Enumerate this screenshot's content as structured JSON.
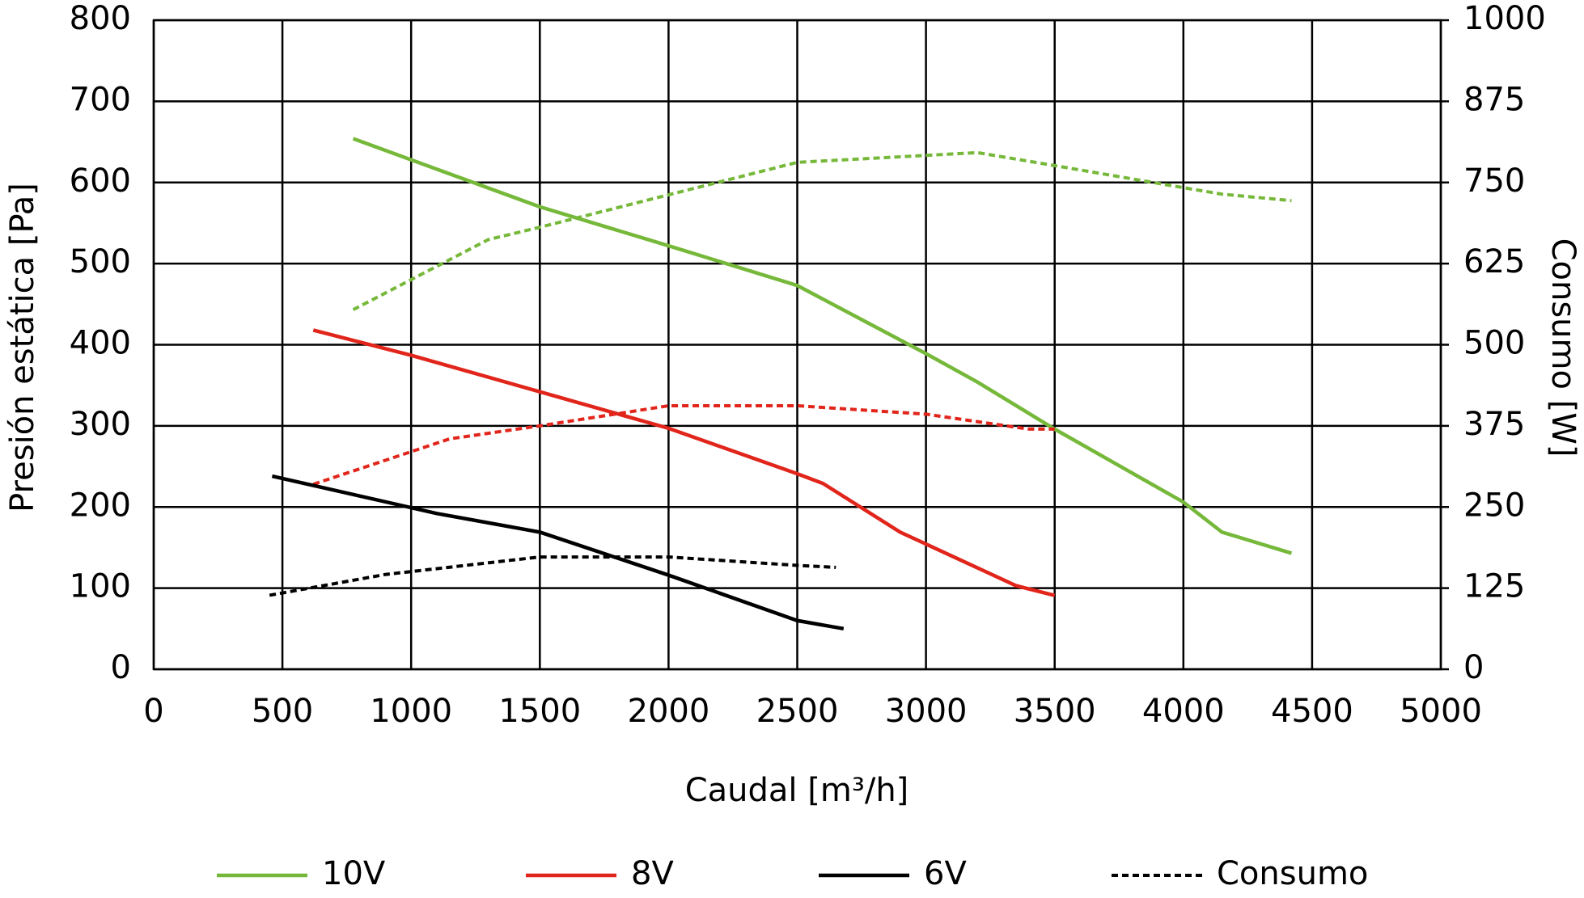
{
  "chart_data": {
    "type": "line",
    "x_label": "Caudal [m³/h]",
    "y_label": "Presión estática [Pa]",
    "y2_label": "Consumo [W]",
    "xlim": [
      0,
      5000
    ],
    "xticks": [
      0,
      500,
      1000,
      1500,
      2000,
      2500,
      3000,
      3500,
      4000,
      4500,
      5000
    ],
    "ylim": [
      0,
      800
    ],
    "yticks": [
      0,
      100,
      200,
      300,
      400,
      500,
      600,
      700,
      800
    ],
    "y2lim": [
      0,
      1000
    ],
    "y2ticks": [
      0,
      125,
      250,
      375,
      500,
      625,
      750,
      875,
      1000
    ],
    "grid": true,
    "series": [
      {
        "color": "#76b83a",
        "dashed": false,
        "x": [
          775,
          1500,
          2000,
          2500,
          3000,
          3200,
          3500,
          4000,
          4150,
          4420
        ],
        "values": [
          654,
          570,
          522,
          473,
          389,
          354,
          296,
          206,
          169,
          143
        ]
      },
      {
        "color": "#76b83a",
        "dashed": true,
        "axis": "y2",
        "x": [
          775,
          1300,
          1500,
          2000,
          2500,
          3200,
          3500,
          4000,
          4150,
          4420
        ],
        "values": [
          554,
          662,
          681,
          731,
          781,
          796,
          776,
          742,
          732,
          722
        ]
      },
      {
        "color": "#e1251b",
        "dashed": false,
        "x": [
          620,
          1000,
          1500,
          2000,
          2500,
          2600,
          2900,
          3350,
          3500
        ],
        "values": [
          418,
          387,
          342,
          297,
          241,
          229,
          169,
          103,
          91
        ]
      },
      {
        "color": "#e1251b",
        "dashed": true,
        "axis": "y2",
        "x": [
          620,
          1150,
          1500,
          2000,
          2500,
          3000,
          3400,
          3500
        ],
        "values": [
          285,
          355,
          375,
          406,
          406,
          393,
          370,
          370
        ]
      },
      {
        "color": "#000000",
        "dashed": false,
        "x": [
          460,
          1100,
          1500,
          2000,
          2500,
          2680
        ],
        "values": [
          238,
          192,
          169,
          116,
          60,
          50
        ]
      },
      {
        "color": "#000000",
        "dashed": true,
        "axis": "y2",
        "x": [
          450,
          900,
          1500,
          2000,
          2500,
          2650
        ],
        "values": [
          114,
          146,
          173,
          173,
          160,
          157
        ]
      }
    ],
    "legend": [
      {
        "label": "10V",
        "color": "#76b83a",
        "dashed": false
      },
      {
        "label": "8V",
        "color": "#e1251b",
        "dashed": false
      },
      {
        "label": "6V",
        "color": "#000000",
        "dashed": false
      },
      {
        "label": "Consumo",
        "color": "#000000",
        "dashed": true
      }
    ]
  }
}
